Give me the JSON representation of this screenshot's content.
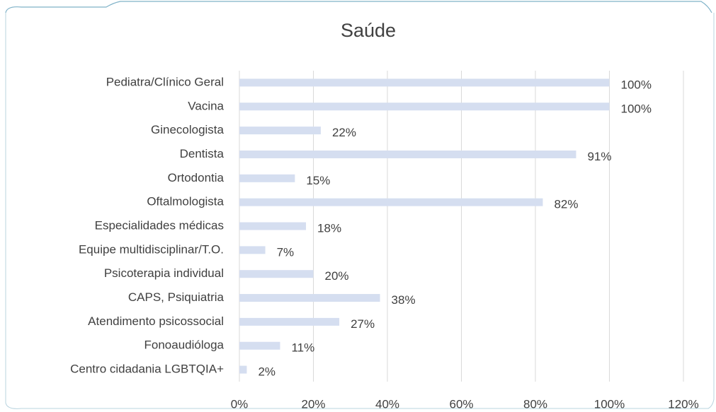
{
  "chart_data": {
    "type": "bar",
    "orientation": "horizontal",
    "title": "Saúde",
    "categories": [
      "Pediatra/Clínico Geral",
      "Vacina",
      "Ginecologista",
      "Dentista",
      "Ortodontia",
      "Oftalmologista",
      "Especialidades médicas",
      "Equipe multidisciplinar/T.O.",
      "Psicoterapia individual",
      "CAPS, Psiquiatria",
      "Atendimento psicossocial",
      "Fonoaudióloga",
      "Centro cidadania LGBTQIA+"
    ],
    "values": [
      100,
      100,
      22,
      91,
      15,
      82,
      18,
      7,
      20,
      38,
      27,
      11,
      2
    ],
    "value_labels": [
      "100%",
      "100%",
      "22%",
      "91%",
      "15%",
      "82%",
      "18%",
      "7%",
      "20%",
      "38%",
      "27%",
      "11%",
      "2%"
    ],
    "color": "#d5def0",
    "xlim": [
      0,
      120
    ],
    "xticks": [
      {
        "value": 0,
        "label": "0%"
      },
      {
        "value": 20,
        "label": "20%"
      },
      {
        "value": 40,
        "label": "40%"
      },
      {
        "value": 60,
        "label": "60%"
      },
      {
        "value": 80,
        "label": "80%"
      },
      {
        "value": 100,
        "label": "100%"
      },
      {
        "value": 120,
        "label": "120%"
      }
    ],
    "grid": true
  }
}
